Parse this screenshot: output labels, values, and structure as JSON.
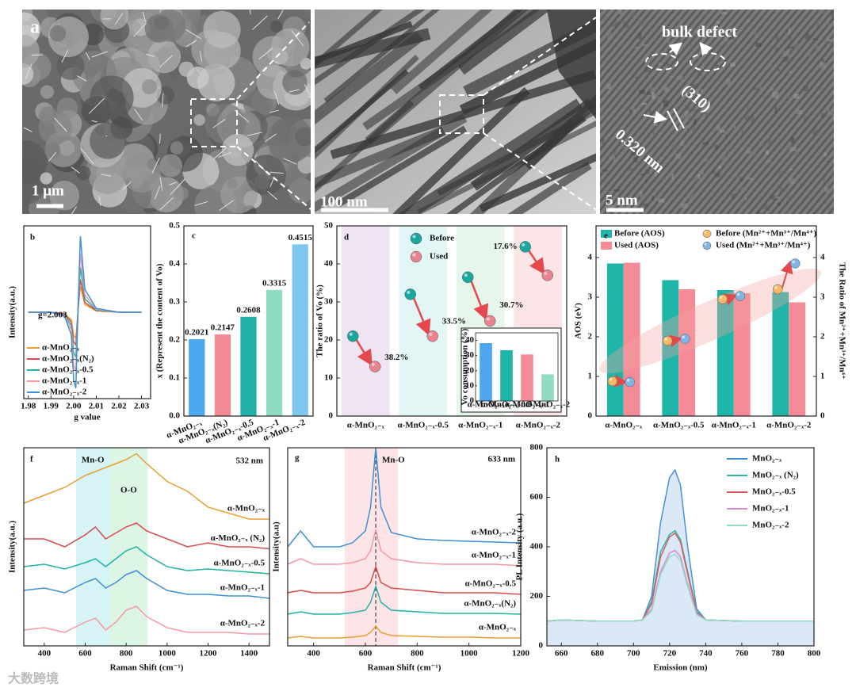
{
  "images": {
    "panel": "a",
    "scale_bars": [
      "1 μm",
      "100 nm",
      "5 nm"
    ],
    "annotations": [
      "bulk defect",
      "(310)",
      "0.320 nm"
    ]
  },
  "watermark": "大数跨境",
  "chart_data": [
    {
      "type": "line",
      "panel": "b",
      "xlabel": "g value",
      "ylabel": "Intensity(a.u.)",
      "x": [
        1.98,
        1.99,
        1.996,
        1.999,
        2.0,
        2.001,
        2.002,
        2.003,
        2.005,
        2.01,
        2.02,
        2.03
      ],
      "xlim": [
        1.978,
        2.034
      ],
      "xticks": [
        1.98,
        1.99,
        {
          "value": 2,
          "label": "2.00"
        },
        2.01,
        2.02,
        2.03
      ],
      "ylim": [
        -100,
        100
      ],
      "legend": "lower left",
      "annotations": [
        "g=2.003"
      ],
      "series": [
        {
          "name": "α-MnO₂₋ₓ",
          "color": "#e8a030",
          "values": [
            0,
            0,
            -1.5,
            -9,
            -27,
            -30,
            3,
            30,
            9,
            1.5,
            0,
            0
          ]
        },
        {
          "name": "α-MnO₂₋ₓ(N₂)",
          "color": "#d94b4b",
          "values": [
            0,
            0,
            -1.9,
            -11.4,
            -34.2,
            -38,
            3.8,
            38,
            11.4,
            1.9,
            0,
            0
          ]
        },
        {
          "name": "α-MnO₂₋ₓ-0.5",
          "color": "#22b3a6",
          "values": [
            0,
            0,
            -2.6,
            -15.6,
            -46.8,
            -52,
            5.2,
            52,
            15.6,
            2.6,
            0,
            0
          ]
        },
        {
          "name": "α-MnO₂₋ₓ-1",
          "color": "#f39aa6",
          "values": [
            0,
            0,
            -3.4,
            -20.4,
            -61.2,
            -68,
            6.8,
            68,
            20.4,
            3.4,
            0,
            0
          ]
        },
        {
          "name": "α-MnO₂₋ₓ-2",
          "color": "#3d8fd6",
          "values": [
            0,
            0,
            -4.4,
            -26.4,
            -79.2,
            -88,
            8.8,
            88,
            26.4,
            4.4,
            0,
            0
          ]
        }
      ]
    },
    {
      "type": "bar",
      "panel": "c",
      "ylabel": "x (Represent the content of Vo)",
      "categories": [
        "α-MnO₂₋ₓ",
        "α-MnO₂₋ₓ(N₂)",
        "α-MnO₂₋ₓ-0.5",
        "α-MnO₂₋ₓ-1",
        "α-MnO₂₋ₓ-2"
      ],
      "values": [
        0.2021,
        0.2147,
        0.2608,
        0.3315,
        0.4515
      ],
      "colors": [
        "#4da6f0",
        "#f28b95",
        "#20b2aa",
        "#8fdcc3",
        "#7ec8f0"
      ],
      "ylim": [
        0,
        0.5
      ],
      "yticks": [
        {
          "value": 0,
          "label": "0.0"
        },
        0.1,
        0.2,
        0.3,
        0.4,
        0.5
      ]
    },
    {
      "type": "scatter",
      "panel": "d",
      "ylabel": "The ratio of Vo (%)",
      "categories": [
        "α-MnO₂₋ₓ",
        "α-MnO₂₋ₓ-0.5",
        "α-MnO₂₋ₓ-1",
        "α-MnO₂₋ₓ-2"
      ],
      "ylim": [
        0,
        50
      ],
      "yticks": [
        0,
        10,
        20,
        30,
        40,
        50
      ],
      "band_colors": [
        "#efe4f2",
        "#e3f6f6",
        "#e6f6ea",
        "#fbe5e7"
      ],
      "series": [
        {
          "name": "Before",
          "color": "#1aa79e",
          "values": [
            21,
            32,
            36.5,
            44.5
          ]
        },
        {
          "name": "Used",
          "color": "#e8838f",
          "values": [
            13,
            21,
            25,
            37
          ]
        }
      ],
      "annotations": [
        "38.2%",
        "33.5%",
        "30.7%",
        "17.6%"
      ],
      "inset": {
        "type": "bar",
        "ylabel": "Vo consumption (%)",
        "categories": [
          "α-MnO₂₋ₓ",
          "α-MnO₂₋ₓ-0.5",
          "α-MnO₂₋ₓ-1",
          "α-MnO₂₋ₓ-2"
        ],
        "values": [
          38.2,
          33.5,
          30.7,
          17.6
        ],
        "colors": [
          "#4da6f0",
          "#1fb5a8",
          "#f48b96",
          "#8fdcc3"
        ],
        "ylim": [
          0,
          45
        ],
        "yticks": [
          0,
          10,
          20,
          30,
          40
        ]
      }
    },
    {
      "type": "combo",
      "panel": "e",
      "ylabel": "AOS (eV)",
      "y2label": "The Ratio of Mn²⁺+Mn³⁺/Mn⁴⁺",
      "categories": [
        "α-MnO₂₋ₓ",
        "α-MnO₂₋ₓ-0.5",
        "α-MnO₂₋ₓ-1",
        "α-MnO₂₋ₓ-2"
      ],
      "ylim": [
        0,
        4.8
      ],
      "yticks": [
        0,
        1,
        2,
        3,
        4
      ],
      "y2lim": [
        0,
        4.8
      ],
      "y2ticks": [
        0,
        1,
        2,
        3,
        4
      ],
      "series": [
        {
          "name": "Before (AOS)",
          "color": "#1fb5a8",
          "values": [
            3.85,
            3.43,
            3.18,
            3.13
          ]
        },
        {
          "name": "Used (AOS)",
          "color": "#f48b96",
          "values": [
            3.87,
            3.2,
            3.1,
            2.87
          ]
        },
        {
          "name": "Before (Mn²⁺+Mn³⁺/Mn⁴⁺)",
          "color": "#f5b865",
          "axis": "y2",
          "values": [
            0.88,
            1.9,
            2.95,
            3.2
          ]
        },
        {
          "name": "Used (Mn²⁺+Mn³⁺/Mn⁴⁺)",
          "color": "#7fb6e6",
          "axis": "y2",
          "values": [
            0.86,
            1.95,
            3.03,
            3.85
          ]
        }
      ]
    },
    {
      "type": "line",
      "panel": "f",
      "xlabel": "Raman Shift (cm⁻¹)",
      "ylabel": "Intensity(a.u.)",
      "x": [
        300,
        400,
        500,
        600,
        650,
        700,
        750,
        800,
        850,
        900,
        1000,
        1100,
        1200,
        1300,
        1400,
        1500
      ],
      "xlim": [
        300,
        1500
      ],
      "xticks": [
        400,
        600,
        800,
        1000,
        1200,
        1400
      ],
      "ylim": [
        0,
        100
      ],
      "legend": "inline",
      "annotations": [
        "532 nm"
      ],
      "bands": [
        {
          "label": "Mn-O",
          "range": [
            555,
            720
          ],
          "color": "#aee8ec"
        },
        {
          "label": "O-O",
          "range": [
            720,
            905
          ],
          "color": "#b9ecc9"
        }
      ],
      "series": [
        {
          "name": "α-MnO₂₋ₓ",
          "color": "#e8a030",
          "values": [
            72,
            76,
            80,
            86,
            88,
            90,
            92,
            94,
            97,
            92,
            83,
            78,
            70,
            67,
            64,
            64
          ]
        },
        {
          "name": "α-MnO₂₋ₓ (N₂)",
          "color": "#d94b4b",
          "values": [
            54,
            54,
            50,
            56,
            60,
            54,
            57,
            60,
            62,
            58,
            54,
            50,
            52,
            50,
            50,
            49
          ]
        },
        {
          "name": "α-MnO₂₋ₓ-0.5",
          "color": "#22b3a6",
          "values": [
            40,
            41.2,
            38.8,
            42,
            44,
            40,
            44,
            48,
            50,
            46,
            40,
            38,
            38.8,
            38,
            37.2,
            36.4
          ]
        },
        {
          "name": "α-MnO₂₋ₓ-1",
          "color": "#3d8fd6",
          "values": [
            28,
            29.2,
            26.8,
            32,
            34,
            29.2,
            32,
            36,
            38,
            34,
            28,
            26,
            26,
            25.2,
            25.2,
            24
          ]
        },
        {
          "name": "α-MnO₂₋ₓ-2",
          "color": "#f39aa6",
          "values": [
            8,
            9.2,
            6.8,
            12,
            14,
            8,
            12,
            18,
            20,
            14.8,
            9.2,
            6.8,
            6.8,
            6.8,
            6,
            6
          ]
        }
      ]
    },
    {
      "type": "line",
      "panel": "g",
      "xlabel": "Raman Shift (cm⁻¹)",
      "ylabel": "Intensity(a.u)",
      "x": [
        300,
        350,
        400,
        500,
        550,
        600,
        620,
        640,
        660,
        700,
        800,
        900,
        1000,
        1100,
        1200
      ],
      "xlim": [
        300,
        1200
      ],
      "xticks": [
        400,
        600,
        800,
        1000,
        1200
      ],
      "ylim": [
        0,
        100
      ],
      "legend": "inline",
      "annotations": [
        "633 nm"
      ],
      "reference_x": 640,
      "bands": [
        {
          "label": "Mn-O",
          "range": [
            520,
            725
          ],
          "color": "#f9c9cf"
        }
      ],
      "series": [
        {
          "name": "α-MnO₂₋ₓ-2",
          "color": "#3d8fd6",
          "values": [
            50,
            58,
            50,
            50,
            52,
            58,
            70,
            100,
            70,
            57.2,
            54,
            53.2,
            52.8,
            52.4,
            52
          ]
        },
        {
          "name": "α-MnO₂₋ₓ-1",
          "color": "#f39aa6",
          "values": [
            41.2,
            44,
            41.2,
            41.2,
            42,
            44,
            48,
            58.8,
            48,
            44,
            42,
            41.2,
            41.2,
            41.2,
            40.4
          ]
        },
        {
          "name": "α-MnO₂₋ₓ-0.5",
          "color": "#d94b4b",
          "values": [
            26.8,
            28,
            26.8,
            26.8,
            27.6,
            29.2,
            32,
            40,
            32,
            29.2,
            28,
            26.8,
            26.8,
            26.8,
            26
          ]
        },
        {
          "name": "α-MnO₂₋ₓ(N₂)",
          "color": "#22b3a6",
          "values": [
            16,
            17.2,
            16,
            16,
            16.8,
            18,
            22,
            30,
            22,
            18,
            17.2,
            16.4,
            16.4,
            16.4,
            16
          ]
        },
        {
          "name": "α-MnO₂₋ₓ",
          "color": "#e8a030",
          "values": [
            4,
            4.8,
            4,
            4,
            4.4,
            5.2,
            6.8,
            10,
            6.8,
            5.2,
            4.8,
            4.4,
            4.4,
            4,
            4
          ]
        }
      ]
    },
    {
      "type": "line",
      "panel": "h",
      "xlabel": "Emission (nm)",
      "ylabel": "PL Intensity (a.u.)",
      "x": [
        652,
        660,
        680,
        700,
        705,
        710,
        715,
        720,
        723,
        726,
        730,
        735,
        740,
        760,
        780,
        800
      ],
      "xlim": [
        652,
        800
      ],
      "xticks": [
        660,
        680,
        700,
        720,
        740,
        760,
        780,
        800
      ],
      "ylim": [
        0,
        800
      ],
      "yticks": [
        0,
        200,
        400,
        600,
        800
      ],
      "legend": "upper right",
      "series": [
        {
          "name": "MnO₂₋ₓ",
          "color": "#4a90d9",
          "shade": true,
          "values": [
            100,
            105,
            100,
            100,
            105,
            200,
            500,
            680,
            710,
            650,
            400,
            150,
            105,
            100,
            100,
            100
          ]
        },
        {
          "name": "MnO₂₋ₓ (N₂)",
          "color": "#2bb5a5",
          "values": [
            100,
            105,
            100,
            100,
            105,
            180,
            380,
            450,
            465,
            430,
            300,
            140,
            105,
            100,
            100,
            100
          ]
        },
        {
          "name": "MnO₂₋ₓ-0.5",
          "color": "#e05a5a",
          "values": [
            100,
            105,
            100,
            100,
            105,
            170,
            360,
            440,
            455,
            420,
            290,
            135,
            105,
            100,
            100,
            100
          ]
        },
        {
          "name": "MnO₂₋ₓ-1",
          "color": "#d88ad6",
          "values": [
            100,
            105,
            100,
            100,
            105,
            150,
            300,
            375,
            385,
            360,
            250,
            130,
            105,
            100,
            100,
            100
          ]
        },
        {
          "name": "MnO₂₋ₓ-2",
          "color": "#8fdcc3",
          "values": [
            100,
            105,
            100,
            100,
            105,
            140,
            290,
            360,
            370,
            345,
            240,
            125,
            105,
            100,
            100,
            100
          ]
        }
      ]
    }
  ]
}
